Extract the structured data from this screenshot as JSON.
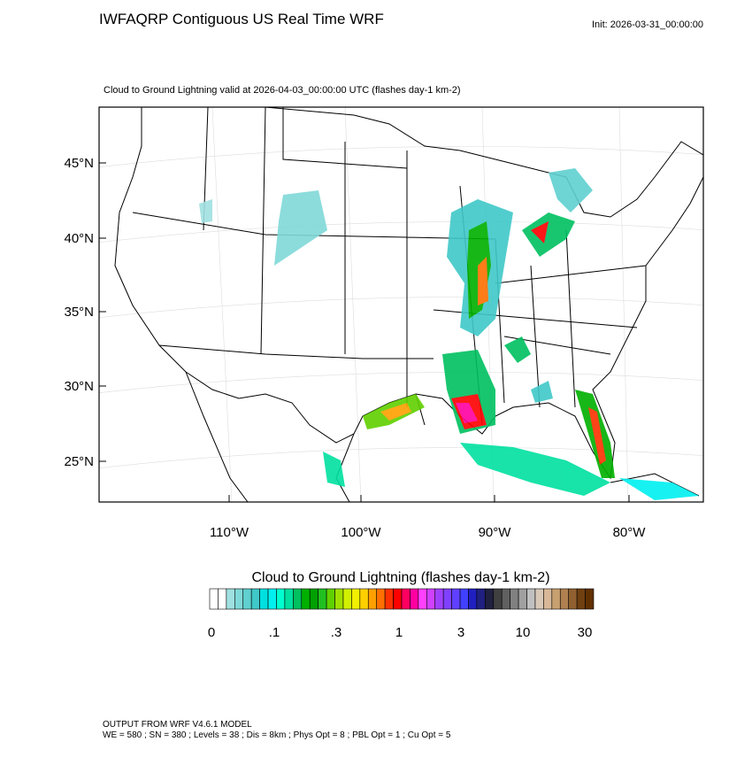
{
  "header": {
    "title": "IWFAQRP Contiguous US Real Time WRF",
    "init": "Init: 2026-03-31_00:00:00"
  },
  "plot": {
    "subtitle": "Cloud to Ground Lightning valid at 2026-04-03_00:00:00 UTC   (flashes day-1 km-2)"
  },
  "axes": {
    "lat_labels": [
      "45°N",
      "40°N",
      "35°N",
      "30°N",
      "25°N"
    ],
    "lon_labels": [
      "110°W",
      "100°W",
      "90°W",
      "80°W"
    ]
  },
  "colorbar": {
    "title": "Cloud to Ground Lightning  (flashes day-1 km-2)",
    "labels": [
      "0",
      ".1",
      ".3",
      "1",
      "3",
      "10",
      "30"
    ],
    "colors": [
      "#ffffff",
      "#ffffff",
      "#a0e0e0",
      "#80d8d8",
      "#60d0d0",
      "#40c8c8",
      "#00e0e0",
      "#00f0f0",
      "#00ffd0",
      "#00e0a0",
      "#00c060",
      "#00b000",
      "#00a000",
      "#20c020",
      "#60d000",
      "#a0e000",
      "#d0f000",
      "#f0f000",
      "#ffd000",
      "#ffa000",
      "#ff7000",
      "#ff3000",
      "#ff0000",
      "#ff0060",
      "#ff00a0",
      "#ff40ff",
      "#d040ff",
      "#a040ff",
      "#8040ff",
      "#6040ff",
      "#4040ff",
      "#2020c0",
      "#202080",
      "#202040",
      "#404040",
      "#606060",
      "#808080",
      "#a0a0a0",
      "#c0c0c0",
      "#d8c8b8",
      "#d8b898",
      "#c8a070",
      "#b08050",
      "#906030",
      "#704010",
      "#603000"
    ]
  },
  "footer": {
    "line1": "OUTPUT FROM WRF V4.6.1 MODEL",
    "line2": "WE = 580 ; SN = 380 ; Levels = 38 ; Dis = 8km ; Phys Opt = 8 ; PBL Opt = 1 ; Cu Opt = 5"
  }
}
